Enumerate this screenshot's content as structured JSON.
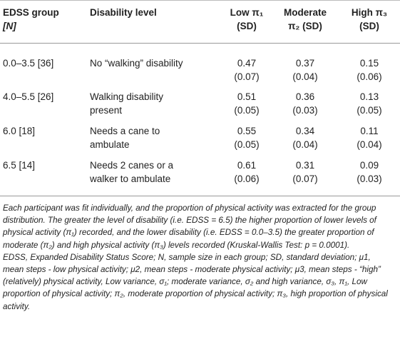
{
  "table": {
    "headers": {
      "group": "EDSS group",
      "group_n": "[N]",
      "level": "Disability level",
      "low_1": "Low π₁",
      "low_2": "(SD)",
      "mod_1": "Moderate",
      "mod_2": "π₂ (SD)",
      "high_1": "High π₃",
      "high_2": "(SD)"
    },
    "rows": [
      {
        "group": "0.0–3.5 [36]",
        "level": [
          "No “walking” disability",
          ""
        ],
        "low": [
          "0.47",
          "(0.07)"
        ],
        "mod": [
          "0.37",
          "(0.04)"
        ],
        "high": [
          "0.15",
          "(0.06)"
        ]
      },
      {
        "group": "4.0–5.5 [26]",
        "level": [
          "Walking disability",
          "present"
        ],
        "low": [
          "0.51",
          "(0.05)"
        ],
        "mod": [
          "0.36",
          "(0.03)"
        ],
        "high": [
          "0.13",
          "(0.05)"
        ]
      },
      {
        "group": "6.0 [18]",
        "level": [
          "Needs a cane to",
          "ambulate"
        ],
        "low": [
          "0.55",
          "(0.05)"
        ],
        "mod": [
          "0.34",
          "(0.04)"
        ],
        "high": [
          "0.11",
          "(0.04)"
        ]
      },
      {
        "group": "6.5 [14]",
        "level": [
          "Needs 2 canes or a",
          "walker to ambulate"
        ],
        "low": [
          "0.61",
          "(0.06)"
        ],
        "mod": [
          "0.31",
          "(0.07)"
        ],
        "high": [
          "0.09",
          "(0.03)"
        ]
      }
    ]
  },
  "footnote": {
    "para1": "Each participant was fit individually, and the proportion of physical activity was extracted for the group distribution. The greater the level of disability (i.e. EDSS = 6.5) the higher proportion of lower levels of physical activity (π₁) recorded, and the lower disability (i.e. EDSS = 0.0–3.5) the greater proportion of moderate (π₂) and high physical activity (π₃) levels recorded (Kruskal-Wallis Test: p = 0.0001).",
    "para2": "EDSS, Expanded Disability Status Score; N, sample size in each group; SD, standard deviation; μ1, mean steps - low physical activity; μ2, mean steps - moderate physical activity; μ3, mean steps - “high” (relatively) physical activity, Low variance, σ₁; moderate variance, σ₂ and high variance, σ₃, π₁, Low proportion of physical activity; π₂, moderate proportion of physical activity; π₃, high proportion of physical activity."
  }
}
